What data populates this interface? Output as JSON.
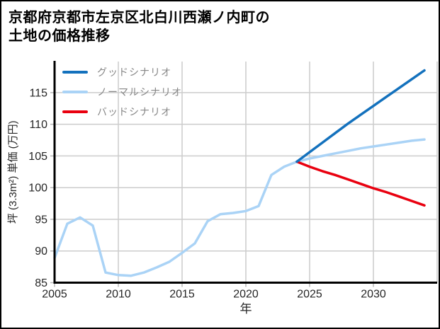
{
  "page": {
    "title_lines": [
      "京都府京都市左京区北白川西瀬ノ内町の",
      "土地の価格推移"
    ]
  },
  "chart_data": {
    "type": "line",
    "title": "京都府京都市左京区北白川西瀬ノ内町の土地の価格推移",
    "xlabel": "年",
    "ylabel": "坪 (3.3m²) 単価 (万円)",
    "xlim": [
      2005,
      2035
    ],
    "ylim": [
      85,
      120
    ],
    "x_ticks": [
      2005,
      2010,
      2015,
      2020,
      2025,
      2030
    ],
    "x_gridlines": [
      2010,
      2015,
      2020,
      2025,
      2030,
      2035
    ],
    "y_ticks": [
      85,
      90,
      95,
      100,
      105,
      110,
      115
    ],
    "grid": true,
    "legend_position": "upper-left-inside",
    "series": [
      {
        "name": "グッドシナリオ",
        "role": "good-scenario",
        "color": "#1371bd",
        "x": [
          2024,
          2025,
          2026,
          2027,
          2028,
          2029,
          2030,
          2031,
          2032,
          2033,
          2034
        ],
        "values": [
          104.1,
          105.6,
          107.1,
          108.6,
          110.1,
          111.5,
          112.9,
          114.3,
          115.7,
          117.1,
          118.5
        ]
      },
      {
        "name": "ノーマルシナリオ",
        "role": "normal-scenario",
        "color": "#aad3f6",
        "x": [
          2005,
          2006,
          2007,
          2008,
          2009,
          2010,
          2011,
          2012,
          2013,
          2014,
          2015,
          2016,
          2017,
          2018,
          2019,
          2020,
          2021,
          2022,
          2023,
          2024,
          2025,
          2026,
          2027,
          2028,
          2029,
          2030,
          2031,
          2032,
          2033,
          2034
        ],
        "values": [
          88.9,
          94.3,
          95.3,
          94.0,
          86.6,
          86.2,
          86.1,
          86.6,
          87.4,
          88.3,
          89.7,
          91.2,
          94.7,
          95.8,
          96.0,
          96.3,
          97.1,
          102.0,
          103.3,
          104.1,
          104.6,
          105.0,
          105.4,
          105.8,
          106.2,
          106.5,
          106.8,
          107.1,
          107.4,
          107.6
        ]
      },
      {
        "name": "バッドシナリオ",
        "role": "bad-scenario",
        "color": "#e9000f",
        "x": [
          2024,
          2025,
          2026,
          2027,
          2028,
          2029,
          2030,
          2031,
          2032,
          2033,
          2034
        ],
        "values": [
          104.1,
          103.3,
          102.6,
          102.0,
          101.3,
          100.6,
          99.9,
          99.3,
          98.6,
          97.9,
          97.2
        ]
      }
    ]
  },
  "colors": {
    "background": "#ffffff",
    "grid": "#cccccc",
    "spine": "#000000",
    "tick": "#b5b5b5",
    "tick_label": "#262626",
    "axis_label": "#262626",
    "legend_text": "#878787"
  }
}
